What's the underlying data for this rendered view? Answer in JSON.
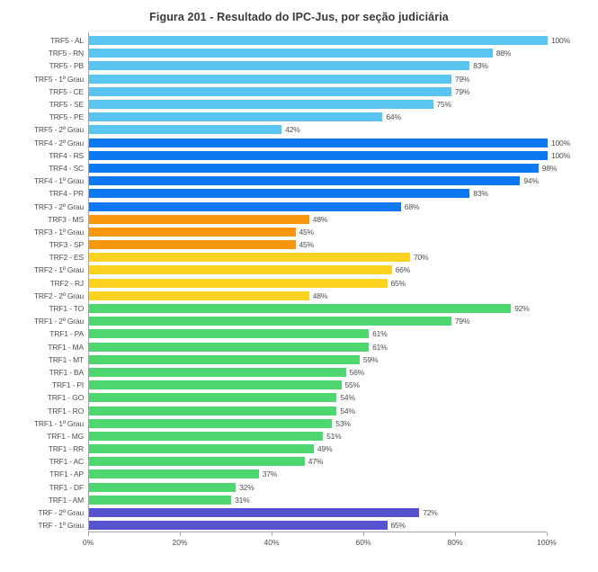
{
  "title": "Figura 201 - Resultado do IPC-Jus, por seção judiciária",
  "chart_data": {
    "type": "bar",
    "orientation": "horizontal",
    "title": "Figura 201 - Resultado do IPC-Jus, por seção judiciária",
    "xlabel": "",
    "ylabel": "",
    "xlim": [
      0,
      100
    ],
    "x_ticks": [
      "0%",
      "20%",
      "40%",
      "60%",
      "80%",
      "100%"
    ],
    "grid": false,
    "legend": false,
    "palette": {
      "trf5": "#5BC5F2",
      "trf4": "#0E78F0",
      "trf3": "#F8960C",
      "trf2": "#FAD21F",
      "trf1": "#4ED771",
      "trf": "#5753D0"
    },
    "bars": [
      {
        "label": "TRF5 - AL",
        "value": 100,
        "value_label": "100%",
        "color": "trf5"
      },
      {
        "label": "TRF5 - RN",
        "value": 88,
        "value_label": "88%",
        "color": "trf5"
      },
      {
        "label": "TRF5 - PB",
        "value": 83,
        "value_label": "83%",
        "color": "trf5"
      },
      {
        "label": "TRF5 - 1º Grau",
        "value": 79,
        "value_label": "79%",
        "color": "trf5"
      },
      {
        "label": "TRF5 - CE",
        "value": 79,
        "value_label": "79%",
        "color": "trf5"
      },
      {
        "label": "TRF5 - SE",
        "value": 75,
        "value_label": "75%",
        "color": "trf5"
      },
      {
        "label": "TRF5 - PE",
        "value": 64,
        "value_label": "64%",
        "color": "trf5"
      },
      {
        "label": "TRF5 - 2º Grau",
        "value": 42,
        "value_label": "42%",
        "color": "trf5"
      },
      {
        "label": "TRF4 - 2º Grau",
        "value": 100,
        "value_label": "100%",
        "color": "trf4"
      },
      {
        "label": "TRF4 - RS",
        "value": 100,
        "value_label": "100%",
        "color": "trf4"
      },
      {
        "label": "TRF4 - SC",
        "value": 98,
        "value_label": "98%",
        "color": "trf4"
      },
      {
        "label": "TRF4 - 1º Grau",
        "value": 94,
        "value_label": "94%",
        "color": "trf4"
      },
      {
        "label": "TRF4 - PR",
        "value": 83,
        "value_label": "83%",
        "color": "trf4"
      },
      {
        "label": "TRF3 - 2º Grau",
        "value": 68,
        "value_label": "68%",
        "color": "trf4"
      },
      {
        "label": "TRF3 - MS",
        "value": 48,
        "value_label": "48%",
        "color": "trf3"
      },
      {
        "label": "TRF3 - 1º Grau",
        "value": 45,
        "value_label": "45%",
        "color": "trf3"
      },
      {
        "label": "TRF3 - SP",
        "value": 45,
        "value_label": "45%",
        "color": "trf3"
      },
      {
        "label": "TRF2 - ES",
        "value": 70,
        "value_label": "70%",
        "color": "trf2"
      },
      {
        "label": "TRF2 - 1º Grau",
        "value": 66,
        "value_label": "66%",
        "color": "trf2"
      },
      {
        "label": "TRF2 - RJ",
        "value": 65,
        "value_label": "65%",
        "color": "trf2"
      },
      {
        "label": "TRF2 - 2º Grau",
        "value": 48,
        "value_label": "48%",
        "color": "trf2"
      },
      {
        "label": "TRF1 - TO",
        "value": 92,
        "value_label": "92%",
        "color": "trf1"
      },
      {
        "label": "TRF1 - 2º Grau",
        "value": 79,
        "value_label": "79%",
        "color": "trf1"
      },
      {
        "label": "TRF1 - PA",
        "value": 61,
        "value_label": "61%",
        "color": "trf1"
      },
      {
        "label": "TRF1 - MA",
        "value": 61,
        "value_label": "61%",
        "color": "trf1"
      },
      {
        "label": "TRF1 - MT",
        "value": 59,
        "value_label": "59%",
        "color": "trf1"
      },
      {
        "label": "TRF1 - BA",
        "value": 56,
        "value_label": "56%",
        "color": "trf1"
      },
      {
        "label": "TRF1 - PI",
        "value": 55,
        "value_label": "55%",
        "color": "trf1"
      },
      {
        "label": "TRF1 - GO",
        "value": 54,
        "value_label": "54%",
        "color": "trf1"
      },
      {
        "label": "TRF1 - RO",
        "value": 54,
        "value_label": "54%",
        "color": "trf1"
      },
      {
        "label": "TRF1 - 1º Grau",
        "value": 53,
        "value_label": "53%",
        "color": "trf1"
      },
      {
        "label": "TRF1 - MG",
        "value": 51,
        "value_label": "51%",
        "color": "trf1"
      },
      {
        "label": "TRF1 - RR",
        "value": 49,
        "value_label": "49%",
        "color": "trf1"
      },
      {
        "label": "TRF1 - AC",
        "value": 47,
        "value_label": "47%",
        "color": "trf1"
      },
      {
        "label": "TRF1 - AP",
        "value": 37,
        "value_label": "37%",
        "color": "trf1"
      },
      {
        "label": "TRF1 - DF",
        "value": 32,
        "value_label": "32%",
        "color": "trf1"
      },
      {
        "label": "TRF1 - AM",
        "value": 31,
        "value_label": "31%",
        "color": "trf1"
      },
      {
        "label": "TRF - 2º Grau",
        "value": 72,
        "value_label": "72%",
        "color": "trf"
      },
      {
        "label": "TRF - 1º Grau",
        "value": 65,
        "value_label": "65%",
        "color": "trf"
      }
    ]
  }
}
